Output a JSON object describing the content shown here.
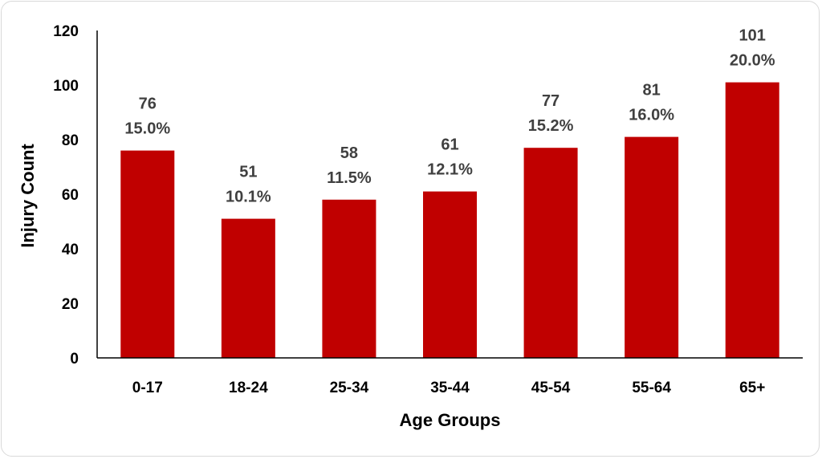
{
  "chart_data": {
    "type": "bar",
    "categories": [
      "0-17",
      "18-24",
      "25-34",
      "35-44",
      "45-54",
      "55-64",
      "65+"
    ],
    "values": [
      76,
      51,
      58,
      61,
      77,
      81,
      101
    ],
    "percent_labels": [
      "15.0%",
      "10.1%",
      "11.5%",
      "12.1%",
      "15.2%",
      "16.0%",
      "20.0%"
    ],
    "xlabel": "Age Groups",
    "ylabel": "Injury Count",
    "ylim": [
      0,
      120
    ],
    "yticks": [
      "0",
      "20",
      "40",
      "60",
      "80",
      "100",
      "120"
    ],
    "grid": false,
    "legend": "none",
    "bar_color": "#c00000"
  }
}
